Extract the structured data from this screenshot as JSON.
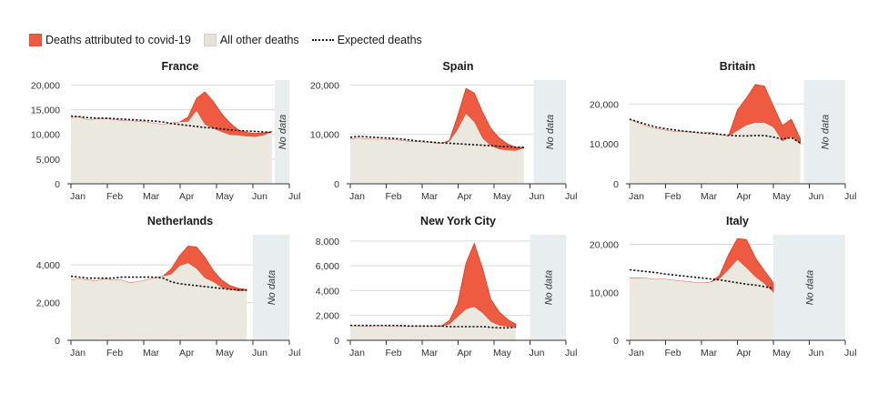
{
  "legend": {
    "covid_label": "Deaths attributed to covid-19",
    "other_label": "All other deaths",
    "expected_label": "Expected deaths"
  },
  "colors": {
    "covid": "#ef5b40",
    "covid_edge": "#d63e25",
    "other": "#ebe8df",
    "expected": "#111111",
    "nodata": "#e8eef0",
    "axis": "#333333",
    "grid": "#d9d9d9"
  },
  "no_data_label": "No data",
  "chart_data": [
    {
      "type": "area",
      "title": "France",
      "x_ticks": [
        "Jan",
        "Feb",
        "Mar",
        "Apr",
        "May",
        "Jun",
        "Jul"
      ],
      "y_ticks": [
        "0",
        "5,000",
        "10,000",
        "15,000",
        "20,000"
      ],
      "y_tick_values": [
        0,
        5000,
        10000,
        15000,
        20000
      ],
      "ylim": [
        0,
        21000
      ],
      "no_data_from_month": 5.6,
      "x": [
        0,
        0.23,
        0.46,
        0.69,
        0.92,
        1.15,
        1.38,
        1.61,
        1.84,
        2.07,
        2.3,
        2.53,
        2.76,
        2.99,
        3.22,
        3.45,
        3.68,
        3.91,
        4.14,
        4.37,
        4.6,
        4.83,
        5.06,
        5.29,
        5.52
      ],
      "other": [
        13400,
        13500,
        12900,
        13100,
        13200,
        13000,
        12800,
        12800,
        12600,
        12500,
        12200,
        12000,
        12300,
        12500,
        12600,
        14800,
        12000,
        11200,
        10500,
        9900,
        9800,
        9600,
        9500,
        9800,
        10500
      ],
      "total": [
        13400,
        13500,
        12900,
        13100,
        13200,
        13000,
        12800,
        12800,
        12600,
        12500,
        12200,
        12000,
        12300,
        12500,
        13500,
        17300,
        18600,
        16700,
        14200,
        12300,
        10900,
        10400,
        10200,
        10300,
        10600
      ],
      "expected": [
        13700,
        13600,
        13400,
        13300,
        13300,
        13200,
        13100,
        13000,
        12900,
        12800,
        12700,
        12500,
        12200,
        12000,
        11800,
        11600,
        11400,
        11300,
        11100,
        10900,
        10800,
        10700,
        10600,
        10500,
        10400
      ]
    },
    {
      "type": "area",
      "title": "Spain",
      "x_ticks": [
        "Jan",
        "Feb",
        "Mar",
        "Apr",
        "May",
        "Jun",
        "Jul"
      ],
      "y_ticks": [
        "0",
        "10,000",
        "20,000"
      ],
      "y_tick_values": [
        0,
        10000,
        20000
      ],
      "ylim": [
        0,
        21000
      ],
      "no_data_from_month": 5.1,
      "x": [
        0,
        0.23,
        0.46,
        0.69,
        0.92,
        1.15,
        1.38,
        1.61,
        1.84,
        2.07,
        2.3,
        2.53,
        2.76,
        2.99,
        3.22,
        3.45,
        3.68,
        3.91,
        4.14,
        4.37,
        4.6,
        4.83
      ],
      "other": [
        9100,
        9200,
        9100,
        9000,
        9000,
        8900,
        8800,
        8600,
        8500,
        8400,
        8300,
        8100,
        8600,
        11000,
        14200,
        12500,
        9200,
        7700,
        7000,
        6800,
        6700,
        7200
      ],
      "total": [
        9100,
        9200,
        9100,
        9000,
        9000,
        8900,
        8800,
        8600,
        8500,
        8400,
        8300,
        8100,
        8800,
        13800,
        19300,
        18400,
        14500,
        11200,
        9300,
        8100,
        7400,
        7300
      ],
      "expected": [
        9400,
        9600,
        9500,
        9400,
        9300,
        9200,
        9100,
        8900,
        8700,
        8600,
        8400,
        8300,
        8200,
        8100,
        8000,
        7900,
        7800,
        7700,
        7600,
        7500,
        7400,
        7400
      ]
    },
    {
      "type": "area",
      "title": "Britain",
      "x_ticks": [
        "Jan",
        "Feb",
        "Mar",
        "Apr",
        "May",
        "Jun",
        "Jul"
      ],
      "y_ticks": [
        "0",
        "10,000",
        "20,000"
      ],
      "y_tick_values": [
        0,
        10000,
        20000
      ],
      "ylim": [
        0,
        26000
      ],
      "no_data_from_month": 4.85,
      "x": [
        0,
        0.25,
        0.5,
        0.75,
        1.0,
        1.25,
        1.5,
        1.75,
        2.0,
        2.25,
        2.5,
        2.75,
        3.0,
        3.25,
        3.5,
        3.75,
        4.0,
        4.25,
        4.5,
        4.75
      ],
      "other": [
        16100,
        15200,
        14300,
        13800,
        13400,
        13100,
        13100,
        12900,
        12600,
        12900,
        12400,
        11900,
        13300,
        14700,
        15300,
        15300,
        14200,
        10700,
        11800,
        10000
      ],
      "total": [
        16100,
        15200,
        14300,
        13800,
        13400,
        13100,
        13100,
        12900,
        12600,
        12900,
        12400,
        11900,
        18500,
        21500,
        24900,
        24500,
        19500,
        14600,
        16200,
        11300
      ],
      "expected": [
        16200,
        15500,
        14800,
        14200,
        13800,
        13500,
        13200,
        13000,
        12800,
        12600,
        12400,
        12200,
        12000,
        12000,
        12100,
        12100,
        11700,
        11200,
        11600,
        10200
      ]
    },
    {
      "type": "area",
      "title": "Netherlands",
      "x_ticks": [
        "Jan",
        "Feb",
        "Mar",
        "Apr",
        "May",
        "Jun",
        "Jul"
      ],
      "y_ticks": [
        "0",
        "2,000",
        "4,000"
      ],
      "y_tick_values": [
        0,
        2000,
        4000
      ],
      "ylim": [
        0,
        5600
      ],
      "no_data_from_month": 5.0,
      "x": [
        0,
        0.23,
        0.46,
        0.69,
        0.92,
        1.15,
        1.38,
        1.61,
        1.84,
        2.07,
        2.3,
        2.53,
        2.76,
        2.99,
        3.22,
        3.45,
        3.68,
        3.91,
        4.14,
        4.37,
        4.6,
        4.83
      ],
      "other": [
        3200,
        3250,
        3200,
        3150,
        3250,
        3200,
        3200,
        3050,
        3100,
        3200,
        3300,
        3400,
        3500,
        3950,
        4100,
        3800,
        3300,
        3100,
        2800,
        2700,
        2600,
        2650
      ],
      "total": [
        3200,
        3250,
        3200,
        3150,
        3250,
        3200,
        3200,
        3050,
        3100,
        3200,
        3300,
        3400,
        3800,
        4500,
        5000,
        4950,
        4400,
        3700,
        3200,
        2900,
        2750,
        2700
      ],
      "expected": [
        3400,
        3350,
        3300,
        3300,
        3300,
        3300,
        3350,
        3350,
        3350,
        3350,
        3350,
        3300,
        3100,
        3000,
        2950,
        2900,
        2850,
        2800,
        2750,
        2700,
        2680,
        2650
      ]
    },
    {
      "type": "area",
      "title": "New York City",
      "x_ticks": [
        "Jan",
        "Feb",
        "Mar",
        "Apr",
        "May",
        "Jun",
        "Jul"
      ],
      "y_ticks": [
        "0",
        "2,000",
        "4,000",
        "6,000",
        "8,000"
      ],
      "y_tick_values": [
        0,
        2000,
        4000,
        6000,
        8000
      ],
      "ylim": [
        0,
        8500
      ],
      "no_data_from_month": 5.0,
      "x": [
        0,
        0.23,
        0.46,
        0.69,
        0.92,
        1.15,
        1.38,
        1.61,
        1.84,
        2.07,
        2.3,
        2.53,
        2.76,
        2.99,
        3.22,
        3.45,
        3.68,
        3.91,
        4.14,
        4.37,
        4.6
      ],
      "other": [
        1150,
        1150,
        1100,
        1150,
        1150,
        1100,
        1100,
        1100,
        1100,
        1100,
        1100,
        1100,
        1300,
        1900,
        2500,
        2700,
        2200,
        1500,
        1200,
        1100,
        1050
      ],
      "total": [
        1150,
        1150,
        1100,
        1150,
        1150,
        1100,
        1100,
        1100,
        1100,
        1100,
        1100,
        1150,
        1600,
        3000,
        6200,
        7800,
        5800,
        3300,
        2300,
        1700,
        1300
      ],
      "expected": [
        1200,
        1200,
        1200,
        1200,
        1200,
        1200,
        1200,
        1150,
        1150,
        1150,
        1150,
        1150,
        1100,
        1100,
        1100,
        1100,
        1100,
        1050,
        1000,
        1000,
        1050
      ]
    },
    {
      "type": "area",
      "title": "Italy",
      "x_ticks": [
        "Jan",
        "Feb",
        "Mar",
        "Apr",
        "May",
        "Jun",
        "Jul"
      ],
      "y_ticks": [
        "0",
        "10,000",
        "20,000"
      ],
      "y_tick_values": [
        0,
        10000,
        20000
      ],
      "ylim": [
        0,
        22000
      ],
      "no_data_from_month": 4.0,
      "x": [
        0,
        0.25,
        0.5,
        0.75,
        1.0,
        1.25,
        1.5,
        1.75,
        2.0,
        2.25,
        2.5,
        2.75,
        3.0,
        3.25,
        3.5,
        3.75,
        4.0
      ],
      "other": [
        13000,
        13000,
        12900,
        12700,
        12700,
        12500,
        12300,
        12100,
        12000,
        12100,
        12800,
        14700,
        16800,
        15100,
        13200,
        11800,
        10000
      ],
      "total": [
        13000,
        13000,
        12900,
        12700,
        12700,
        12500,
        12300,
        12100,
        12000,
        12100,
        13500,
        17800,
        21200,
        21000,
        17200,
        14500,
        12000
      ],
      "expected": [
        14700,
        14500,
        14300,
        14100,
        13800,
        13600,
        13400,
        13200,
        13000,
        12800,
        12600,
        12300,
        12000,
        11700,
        11500,
        11200,
        10800
      ]
    }
  ]
}
